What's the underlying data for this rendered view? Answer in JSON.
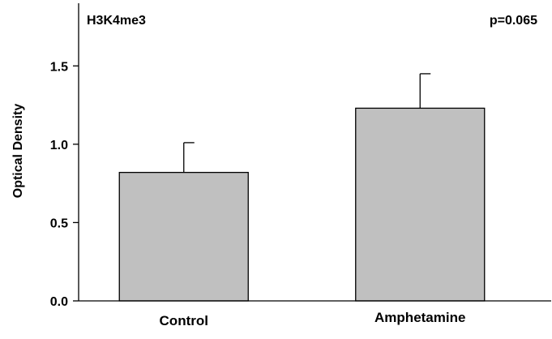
{
  "chart_data": {
    "type": "bar",
    "title": "",
    "xlabel": "",
    "ylabel": "Optical Density",
    "ylim": [
      0,
      1.9
    ],
    "yticks": [
      0.0,
      0.5,
      1.0,
      1.5
    ],
    "ytick_labels": [
      "0.0",
      "0.5",
      "1.0",
      "1.5"
    ],
    "categories": [
      "Control",
      "Amphetamine"
    ],
    "values": [
      0.82,
      1.23
    ],
    "errors": [
      0.19,
      0.22
    ],
    "bar_color": "#c0c0c0",
    "grid": false,
    "annotations": {
      "top_left": "H3K4me3",
      "top_right": "p=0.065"
    }
  }
}
